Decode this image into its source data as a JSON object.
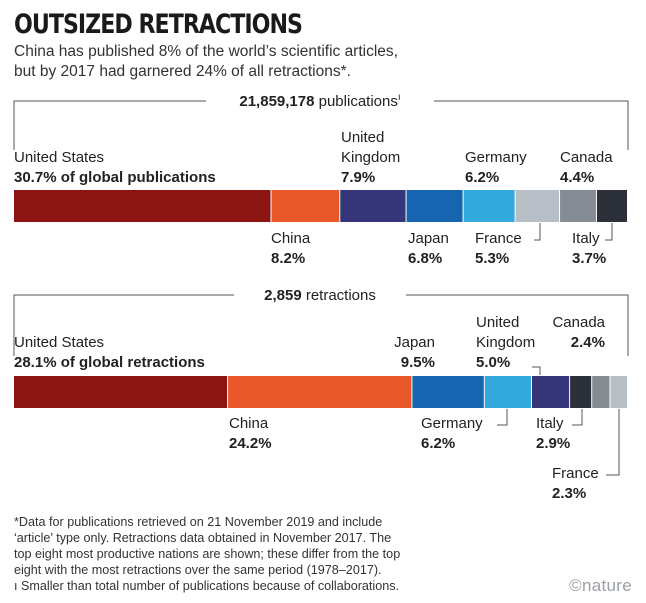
{
  "title": "OUTSIZED RETRACTIONS",
  "subtitle": {
    "line1": "China has published 8% of the world’s scientific articles,",
    "line2": "but by 2017 had garnered 24% of all retractions*."
  },
  "chart_data": [
    {
      "type": "bar",
      "stacked": true,
      "orientation": "horizontal",
      "total_value": "21,859,178",
      "total_label": "publications",
      "total_mark": "ı",
      "categories": [
        "United States",
        "China",
        "United Kingdom",
        "Japan",
        "Germany",
        "France",
        "Canada",
        "Italy"
      ],
      "values": [
        30.7,
        8.2,
        7.9,
        6.8,
        6.2,
        5.3,
        4.4,
        3.7
      ],
      "value_labels": [
        "30.7% of global publications",
        "8.2%",
        "7.9%",
        "6.8%",
        "6.2%",
        "5.3%",
        "4.4%",
        "3.7%"
      ],
      "colors": [
        "#8c1512",
        "#e8582a",
        "#35357a",
        "#1565b0",
        "#34a9dc",
        "#b7bec6",
        "#858c93",
        "#2b3038"
      ]
    },
    {
      "type": "bar",
      "stacked": true,
      "orientation": "horizontal",
      "total_value": "2,859",
      "total_label": "retractions",
      "categories": [
        "United States",
        "China",
        "Japan",
        "Germany",
        "United Kingdom",
        "Italy",
        "Canada",
        "France"
      ],
      "values": [
        28.1,
        24.2,
        9.5,
        6.2,
        5.0,
        2.9,
        2.4,
        2.3
      ],
      "value_labels": [
        "28.1% of global retractions",
        "24.2%",
        "9.5%",
        "6.2%",
        "5.0%",
        "2.9%",
        "2.4%",
        "2.3%"
      ],
      "colors": [
        "#8c1512",
        "#e8582a",
        "#1565b0",
        "#34a9dc",
        "#35357a",
        "#2b3038",
        "#858c93",
        "#b7bec6"
      ]
    }
  ],
  "footnote": {
    "line1": "*Data for publications retrieved on 21 November 2019 and include",
    "line2": "‘article’ type only. Retractions data obtained in November 2017. The",
    "line3": "top eight most productive nations are shown; these differ from the top",
    "line4": "eight with the most retractions over the same period (1978–2017).",
    "line5": "ı Smaller than total number of publications because of collaborations."
  },
  "brand": "©nature"
}
